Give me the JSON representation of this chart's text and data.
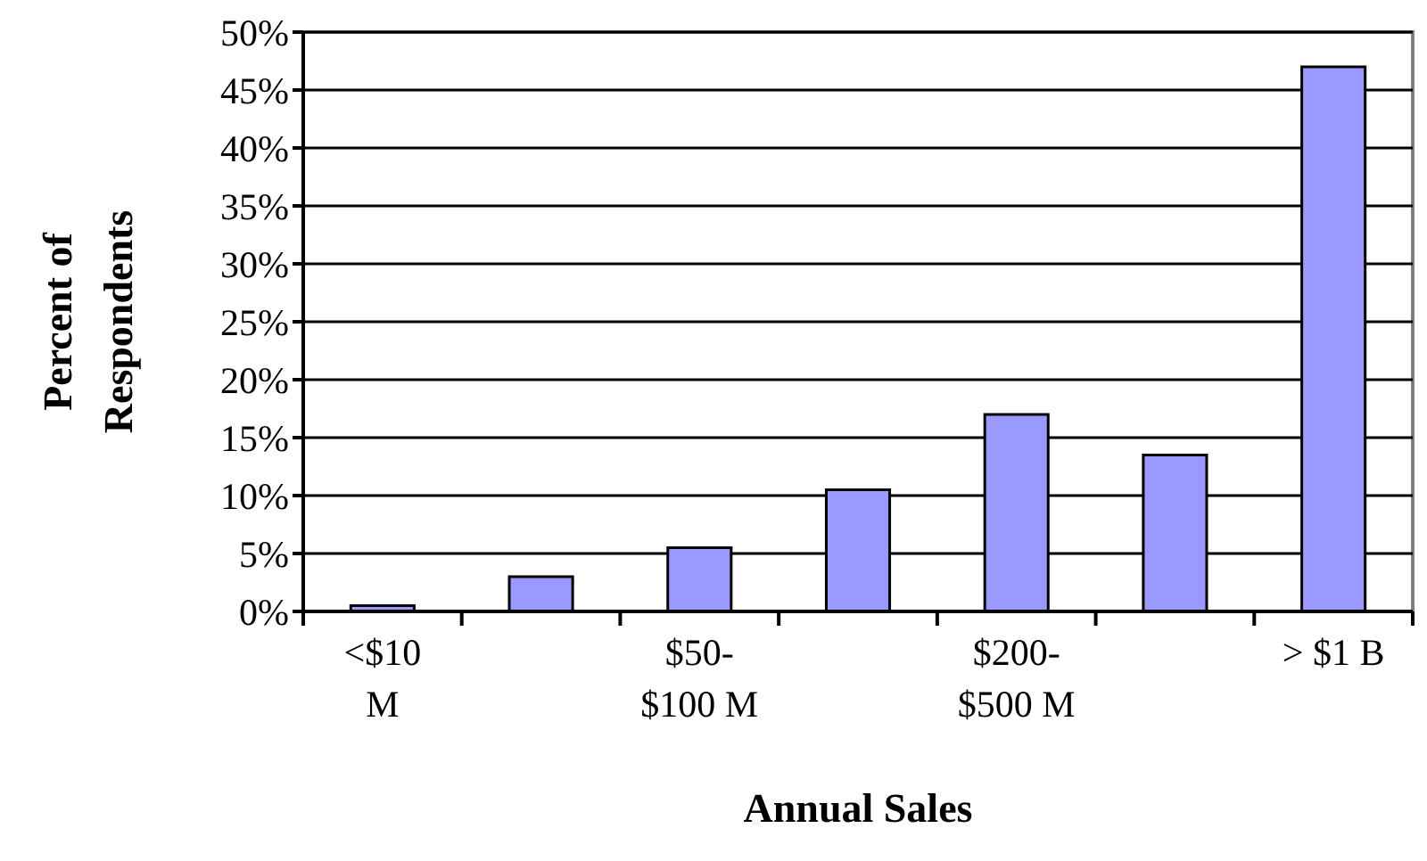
{
  "chart_data": {
    "type": "bar",
    "xlabel": "Annual Sales",
    "ylabel": "Percent of Respondents",
    "categories": [
      "<$10 M",
      null,
      "$50-$100 M",
      null,
      "$200-$500 M",
      null,
      "> $1 B"
    ],
    "values": [
      0.5,
      3,
      5.5,
      10.5,
      17,
      13.5,
      47
    ],
    "color": "#9999ff",
    "ylim": [
      0,
      50
    ],
    "yticks": [
      {
        "value": 0,
        "label": "0%"
      },
      {
        "value": 5,
        "label": "5%"
      },
      {
        "value": 10,
        "label": "10%"
      },
      {
        "value": 15,
        "label": "15%"
      },
      {
        "value": 20,
        "label": "20%"
      },
      {
        "value": 25,
        "label": "25%"
      },
      {
        "value": 30,
        "label": "30%"
      },
      {
        "value": 35,
        "label": "35%"
      },
      {
        "value": 40,
        "label": "40%"
      },
      {
        "value": 45,
        "label": "45%"
      },
      {
        "value": 50,
        "label": "50%"
      }
    ],
    "grid": "y"
  }
}
